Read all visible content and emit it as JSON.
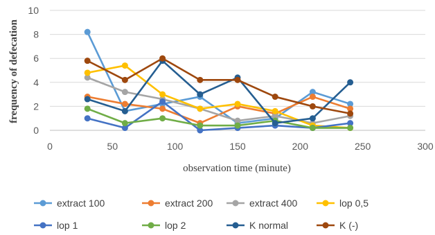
{
  "chart_data": {
    "type": "line",
    "title": "",
    "xlabel": "observation time (minute)",
    "ylabel": "frequency of defecation",
    "xlim": [
      0,
      300
    ],
    "ylim": [
      0,
      10
    ],
    "xticks": [
      0,
      50,
      100,
      150,
      200,
      250,
      300
    ],
    "yticks": [
      0,
      2,
      4,
      6,
      8,
      10
    ],
    "x": [
      30,
      60,
      90,
      120,
      150,
      180,
      210,
      240
    ],
    "grid": "horizontal",
    "legend_position": "bottom",
    "series": [
      {
        "name": "extract 100",
        "color": "#5B9BD5",
        "values": [
          8.2,
          1.6,
          2.2,
          2.8,
          0.6,
          1.0,
          3.2,
          2.2
        ]
      },
      {
        "name": "extract 200",
        "color": "#ED7D31",
        "values": [
          2.8,
          2.2,
          1.8,
          0.6,
          2.0,
          1.4,
          2.8,
          1.8
        ]
      },
      {
        "name": "extract 400",
        "color": "#A5A5A5",
        "values": [
          4.4,
          3.2,
          2.6,
          1.8,
          0.8,
          1.2,
          0.6,
          1.2
        ]
      },
      {
        "name": "lop 0,5",
        "color": "#FFC000",
        "values": [
          4.8,
          5.4,
          3.0,
          1.8,
          2.2,
          1.6,
          0.4,
          0.2
        ]
      },
      {
        "name": "lop 1",
        "color": "#4472C4",
        "values": [
          1.0,
          0.2,
          2.4,
          0.0,
          0.2,
          0.4,
          0.2,
          0.6
        ]
      },
      {
        "name": "lop 2",
        "color": "#70AD47",
        "values": [
          1.8,
          0.6,
          1.0,
          0.4,
          0.4,
          0.8,
          0.2,
          0.2
        ]
      },
      {
        "name": "K normal",
        "color": "#255E91",
        "values": [
          2.6,
          1.6,
          5.8,
          3.0,
          4.4,
          0.6,
          1.0,
          4.0
        ]
      },
      {
        "name": "K (-)",
        "color": "#9E480E",
        "values": [
          5.8,
          4.2,
          6.0,
          4.2,
          4.2,
          2.8,
          2.0,
          1.4
        ]
      }
    ]
  }
}
